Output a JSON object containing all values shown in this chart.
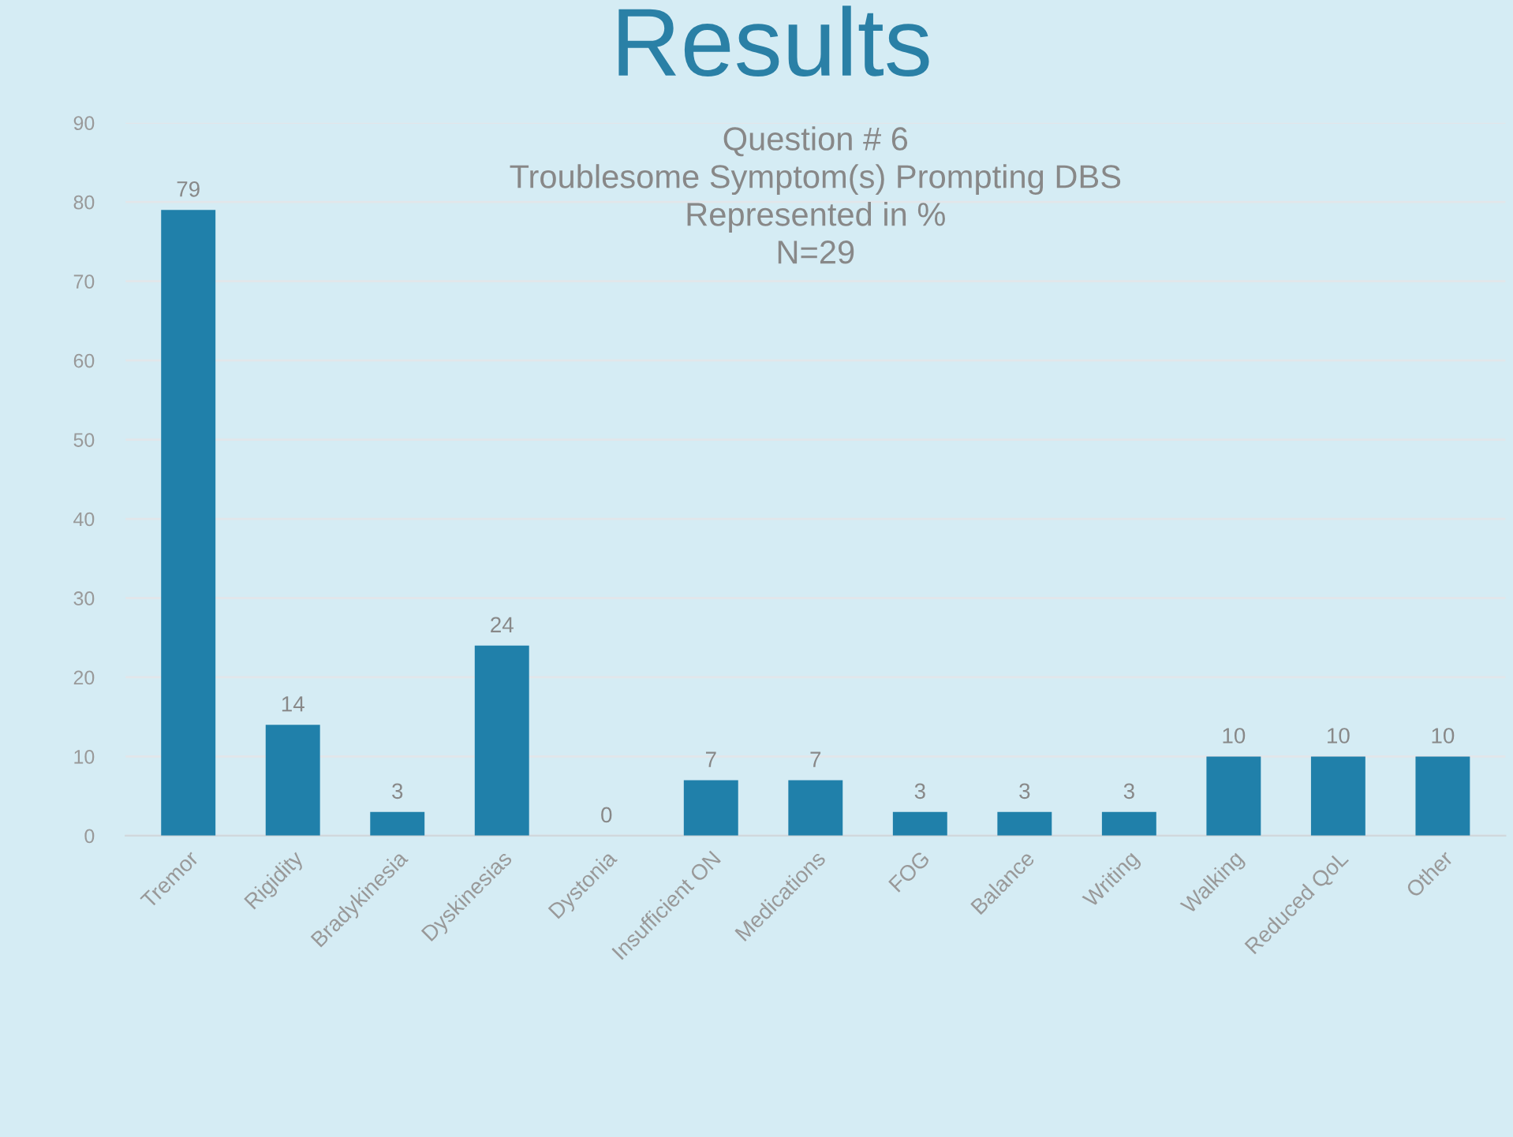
{
  "chart_data": {
    "type": "bar",
    "title": "Results",
    "subtitle": "Question # 6\nTroublesome Symptom(s) Prompting DBS\nRepresented in %\nN=29",
    "categories": [
      "Tremor",
      "Rigidity",
      "Bradykinesia",
      "Dyskinesias",
      "Dystonia",
      "Insufficient ON",
      "Medications",
      "FOG",
      "Balance",
      "Writing",
      "Walking",
      "Reduced QoL",
      "Other"
    ],
    "values": [
      79,
      14,
      3,
      24,
      0,
      7,
      7,
      3,
      3,
      3,
      10,
      10,
      10
    ],
    "color": "#2080aa",
    "ylim": [
      0,
      90
    ],
    "yticks": [
      0,
      10,
      20,
      30,
      40,
      50,
      60,
      70,
      80,
      90
    ],
    "grid": "y",
    "data_labels": true
  }
}
